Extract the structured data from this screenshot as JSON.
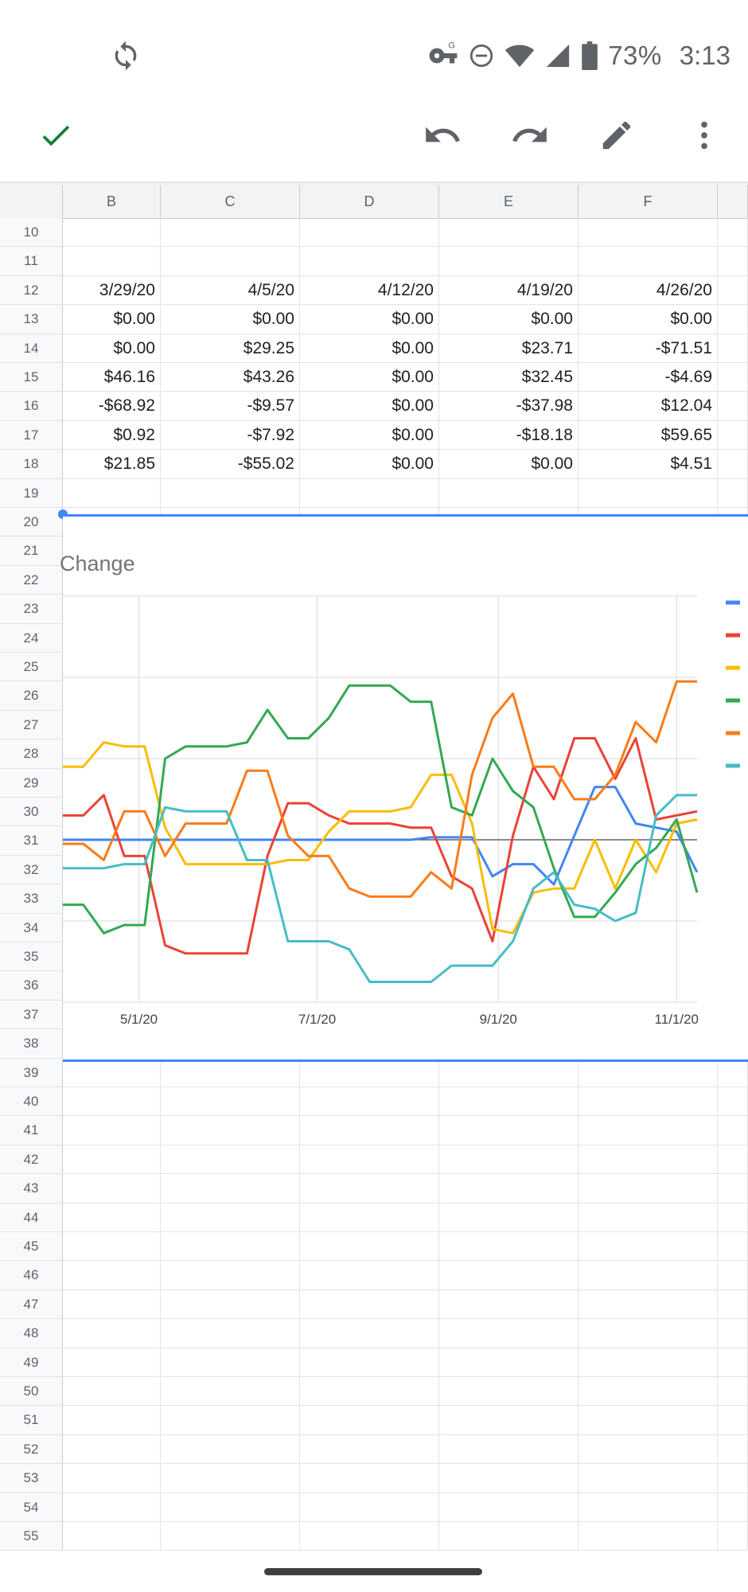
{
  "status": {
    "battery": "73%",
    "time": "3:13"
  },
  "icons": {
    "sync": "sync-icon",
    "vpn_key": "vpn-key-icon",
    "dnd": "do-not-disturb-icon",
    "wifi": "wifi-icon",
    "signal": "signal-icon",
    "battery": "battery-icon",
    "confirm": "check-icon",
    "undo": "undo-icon",
    "redo": "redo-icon",
    "edit": "pencil-icon",
    "more": "more-vert-icon"
  },
  "colors": {
    "accent_green": "#188038",
    "selection_blue": "#4285f4"
  },
  "sheet": {
    "columns": [
      "B",
      "C",
      "D",
      "E",
      "F"
    ],
    "rows": [
      {
        "num": "10",
        "cells": [
          "",
          "",
          "",
          "",
          ""
        ]
      },
      {
        "num": "11",
        "cells": [
          "",
          "",
          "",
          "",
          ""
        ]
      },
      {
        "num": "12",
        "cells": [
          "3/29/20",
          "4/5/20",
          "4/12/20",
          "4/19/20",
          "4/26/20"
        ]
      },
      {
        "num": "13",
        "cells": [
          "$0.00",
          "$0.00",
          "$0.00",
          "$0.00",
          "$0.00"
        ]
      },
      {
        "num": "14",
        "cells": [
          "$0.00",
          "$29.25",
          "$0.00",
          "$23.71",
          "-$71.51"
        ]
      },
      {
        "num": "15",
        "cells": [
          "$46.16",
          "$43.26",
          "$0.00",
          "$32.45",
          "-$4.69"
        ]
      },
      {
        "num": "16",
        "cells": [
          "-$68.92",
          "-$9.57",
          "$0.00",
          "-$37.98",
          "$12.04"
        ]
      },
      {
        "num": "17",
        "cells": [
          "$0.92",
          "-$7.92",
          "$0.00",
          "-$18.18",
          "$59.65"
        ]
      },
      {
        "num": "18",
        "cells": [
          "$21.85",
          "-$55.02",
          "$0.00",
          "$0.00",
          "$4.51"
        ]
      },
      {
        "num": "19",
        "cells": [
          "",
          "",
          "",
          "",
          ""
        ]
      },
      {
        "num": "20"
      },
      {
        "num": "21"
      },
      {
        "num": "22"
      },
      {
        "num": "23"
      },
      {
        "num": "24"
      },
      {
        "num": "25"
      },
      {
        "num": "26"
      },
      {
        "num": "27"
      },
      {
        "num": "28"
      },
      {
        "num": "29"
      },
      {
        "num": "30"
      },
      {
        "num": "31"
      },
      {
        "num": "32"
      },
      {
        "num": "33"
      },
      {
        "num": "34"
      },
      {
        "num": "35"
      },
      {
        "num": "36"
      },
      {
        "num": "37"
      },
      {
        "num": "38"
      },
      {
        "num": "39"
      },
      {
        "num": "40"
      },
      {
        "num": "41"
      },
      {
        "num": "42"
      },
      {
        "num": "43"
      },
      {
        "num": "44"
      },
      {
        "num": "45"
      },
      {
        "num": "46"
      },
      {
        "num": "47"
      },
      {
        "num": "48"
      },
      {
        "num": "49"
      },
      {
        "num": "50"
      },
      {
        "num": "51"
      },
      {
        "num": "52"
      },
      {
        "num": "53"
      },
      {
        "num": "54"
      },
      {
        "num": "55"
      }
    ]
  },
  "chart_data": {
    "type": "line",
    "title": "Change",
    "x_ticks": [
      "5/1/20",
      "7/1/20",
      "9/1/20",
      "11/1/20"
    ],
    "xlim": [
      "2020-04-05",
      "2020-11-08"
    ],
    "grid": true,
    "legend": "right",
    "x": [
      "2020-04-05",
      "2020-04-12",
      "2020-04-19",
      "2020-04-26",
      "2020-05-03",
      "2020-05-10",
      "2020-05-17",
      "2020-05-24",
      "2020-05-31",
      "2020-06-07",
      "2020-06-14",
      "2020-06-21",
      "2020-06-28",
      "2020-07-05",
      "2020-07-12",
      "2020-07-19",
      "2020-07-26",
      "2020-08-02",
      "2020-08-09",
      "2020-08-16",
      "2020-08-23",
      "2020-08-30",
      "2020-09-06",
      "2020-09-13",
      "2020-09-20",
      "2020-09-27",
      "2020-10-04",
      "2020-10-11",
      "2020-10-18",
      "2020-10-25",
      "2020-11-01",
      "2020-11-08"
    ],
    "series": [
      {
        "color": "#4285f4",
        "values": [
          0,
          0,
          0,
          0,
          0,
          0,
          0,
          0,
          0,
          0,
          0,
          0,
          0,
          0,
          0,
          0,
          0,
          0,
          3,
          3,
          3,
          -45,
          -30,
          -30,
          -55,
          5,
          65,
          65,
          20,
          15,
          10,
          -40
        ]
      },
      {
        "color": "#ea4335",
        "values": [
          30,
          30,
          55,
          -20,
          -20,
          -130,
          -140,
          -140,
          -140,
          -140,
          -20,
          45,
          45,
          30,
          20,
          20,
          20,
          15,
          15,
          -45,
          -60,
          -125,
          5,
          90,
          50,
          125,
          125,
          75,
          125,
          25,
          30,
          35
        ]
      },
      {
        "color": "#fbbc04",
        "values": [
          90,
          90,
          120,
          115,
          115,
          15,
          -30,
          -30,
          -30,
          -30,
          -30,
          -25,
          -25,
          10,
          35,
          35,
          35,
          40,
          80,
          80,
          20,
          -110,
          -115,
          -65,
          -60,
          -60,
          0,
          -60,
          0,
          -40,
          20,
          25
        ]
      },
      {
        "color": "#34a853",
        "values": [
          -80,
          -80,
          -115,
          -105,
          -105,
          100,
          115,
          115,
          115,
          120,
          160,
          125,
          125,
          150,
          190,
          190,
          190,
          170,
          170,
          40,
          30,
          100,
          60,
          40,
          -35,
          -95,
          -95,
          -65,
          -30,
          -10,
          25,
          -65
        ]
      },
      {
        "color": "#fa7b17",
        "values": [
          -5,
          -5,
          -25,
          35,
          35,
          -20,
          20,
          20,
          20,
          85,
          85,
          5,
          -20,
          -20,
          -60,
          -70,
          -70,
          -70,
          -40,
          -60,
          80,
          150,
          180,
          90,
          90,
          50,
          50,
          80,
          145,
          120,
          195,
          195
        ]
      },
      {
        "color": "#46bdc6",
        "values": [
          -35,
          -35,
          -35,
          -30,
          -30,
          40,
          35,
          35,
          35,
          -25,
          -25,
          -125,
          -125,
          -125,
          -135,
          -175,
          -175,
          -175,
          -175,
          -155,
          -155,
          -155,
          -125,
          -60,
          -40,
          -80,
          -85,
          -100,
          -90,
          30,
          55,
          55
        ]
      }
    ]
  }
}
